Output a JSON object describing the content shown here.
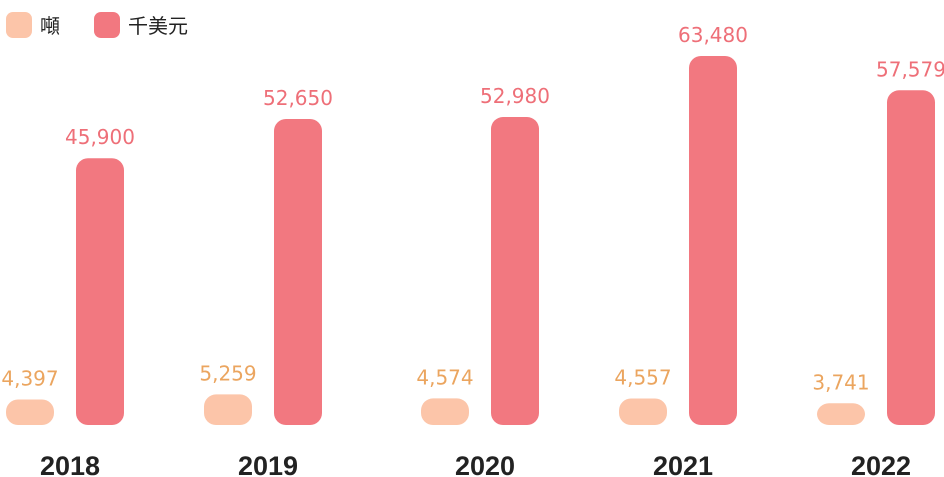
{
  "chart_data": {
    "type": "bar",
    "categories": [
      "2018",
      "2019",
      "2020",
      "2021",
      "2022"
    ],
    "series": [
      {
        "name": "噸",
        "values": [
          4397,
          5259,
          4574,
          4557,
          3741
        ],
        "labels": [
          "4,397",
          "5,259",
          "4,574",
          "4,557",
          "3,741"
        ],
        "color": "#fcc5a9",
        "label_color": "#eba55f"
      },
      {
        "name": "千美元",
        "values": [
          45900,
          52650,
          52980,
          63480,
          57579
        ],
        "labels": [
          "45,900",
          "52,650",
          "52,980",
          "63,480",
          "57,579"
        ],
        "color": "#f27880",
        "label_color": "#ee6f78"
      }
    ],
    "legend_position": "top-left",
    "grid": false
  }
}
